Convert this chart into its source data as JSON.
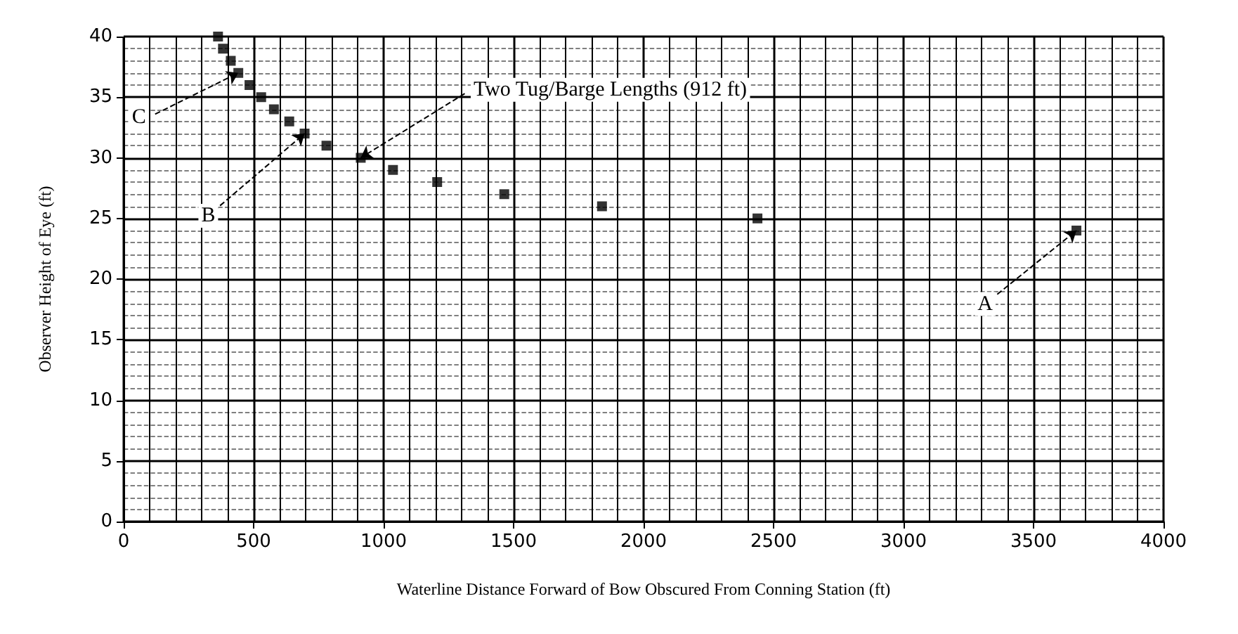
{
  "chart_data": {
    "type": "scatter",
    "xlabel": "Waterline Distance Forward of Bow Obscured From Conning Station (ft)",
    "ylabel": "Observer Height of Eye (ft)",
    "x": [
      363,
      382,
      412,
      441,
      484,
      529,
      578,
      637,
      696,
      780,
      912,
      1036,
      1206,
      1464,
      1840,
      2438,
      3665
    ],
    "values": [
      40,
      39,
      38,
      37,
      36,
      35,
      34,
      33,
      32,
      31,
      30,
      29,
      28,
      27,
      26,
      25,
      24
    ],
    "color": "#000000",
    "marker": "square",
    "grid": true,
    "xlim": [
      0,
      4000
    ],
    "xticks": [
      0,
      500,
      1000,
      1500,
      2000,
      2500,
      3000,
      3500,
      4000
    ],
    "ylim": [
      0,
      40
    ],
    "yticks": [
      0,
      5,
      10,
      15,
      20,
      25,
      30,
      35,
      40
    ],
    "annotations": [
      {
        "text": "Two Tug/Barge Lengths (912 ft)",
        "x": 912,
        "y": 30
      },
      {
        "text": "A",
        "x": 3665,
        "y": 24
      },
      {
        "text": "B",
        "x": 696,
        "y": 32
      },
      {
        "text": "C",
        "x": 441,
        "y": 37
      }
    ]
  }
}
